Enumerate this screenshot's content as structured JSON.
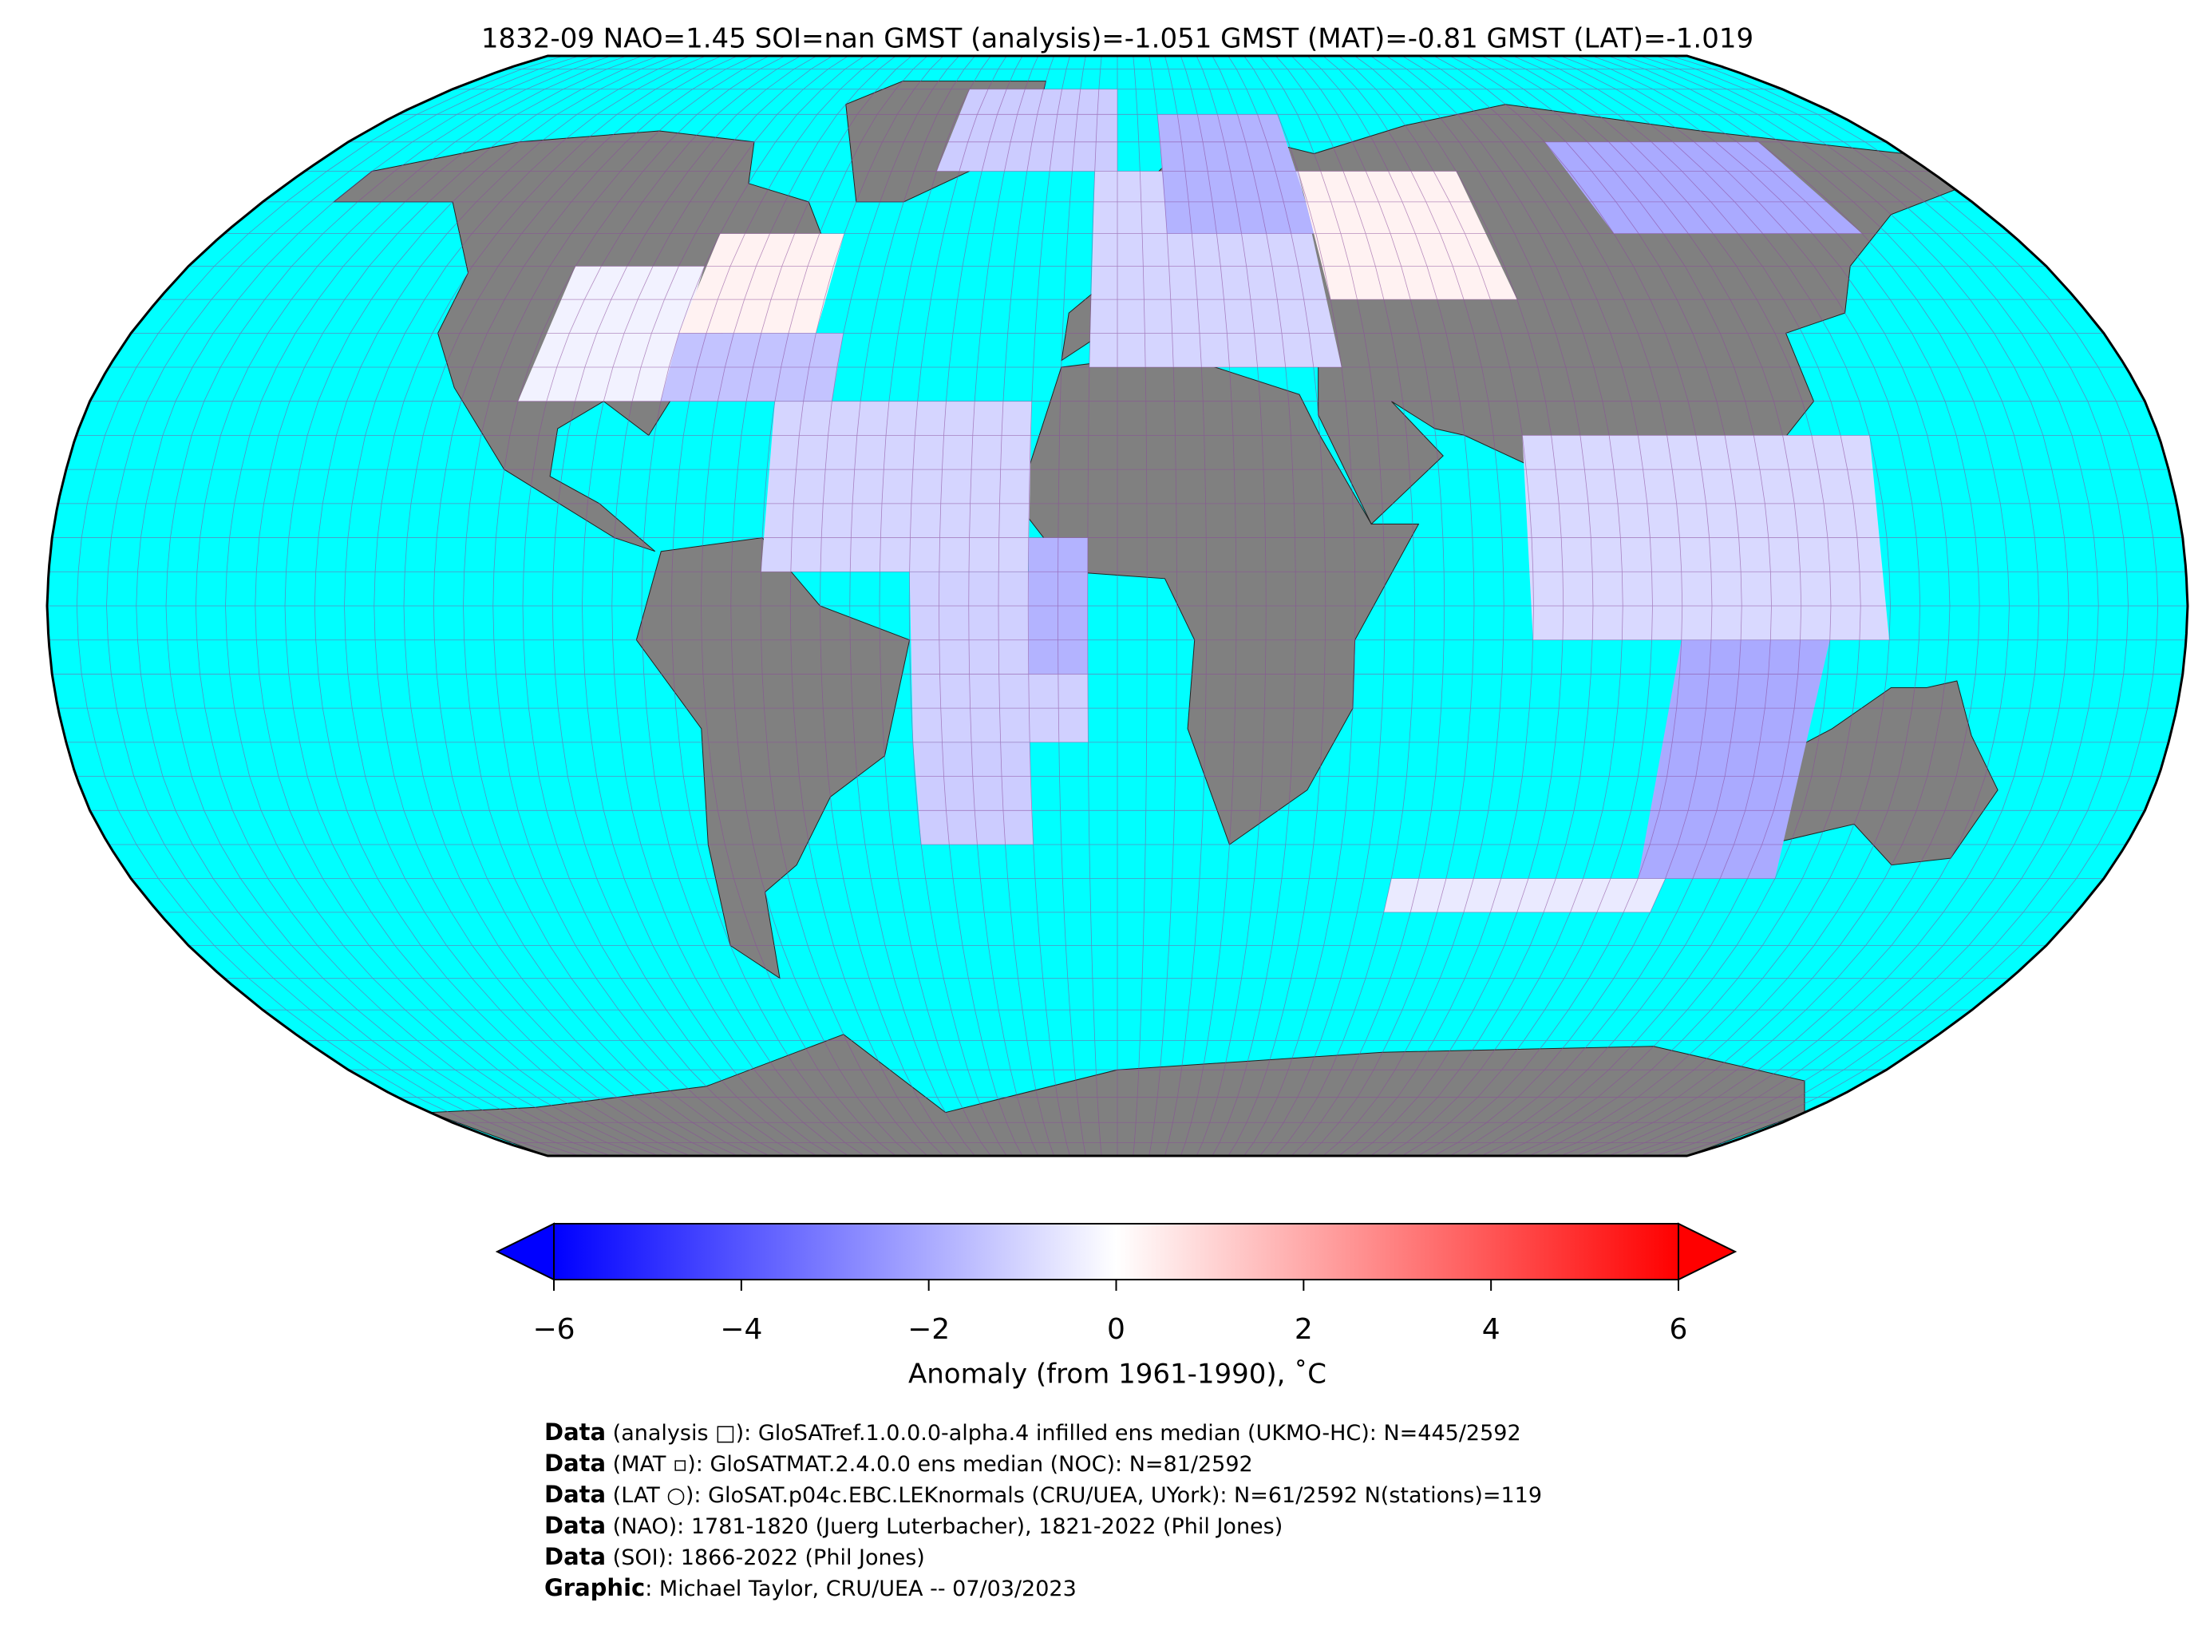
{
  "header": {
    "title": "1832-09 NAO=1.45 SOI=nan GMST (analysis)=-1.051 GMST (MAT)=-0.81 GMST (LAT)=-1.019"
  },
  "chart_data": {
    "type": "map",
    "projection": "robinson",
    "cmap": "bwr",
    "cells": [
      {
        "lon": [
          -60,
          -15
        ],
        "lat": [
          5,
          30
        ],
        "value": -1.0
      },
      {
        "lon": [
          -35,
          -5
        ],
        "lat": [
          -20,
          5
        ],
        "value": -1.1
      },
      {
        "lon": [
          -15,
          -5
        ],
        "lat": [
          -10,
          10
        ],
        "value": -1.8
      },
      {
        "lon": [
          -35,
          -15
        ],
        "lat": [
          -35,
          -20
        ],
        "value": -1.2
      },
      {
        "lon": [
          -105,
          -80
        ],
        "lat": [
          30,
          50
        ],
        "value": -0.3
      },
      {
        "lon": [
          -80,
          -55
        ],
        "lat": [
          40,
          55
        ],
        "value": 0.3
      },
      {
        "lon": [
          -80,
          -50
        ],
        "lat": [
          30,
          40
        ],
        "value": -1.4
      },
      {
        "lon": [
          -5,
          40
        ],
        "lat": [
          35,
          65
        ],
        "value": -1.0
      },
      {
        "lon": [
          10,
          40
        ],
        "lat": [
          55,
          75
        ],
        "value": -1.8
      },
      {
        "lon": [
          -40,
          0
        ],
        "lat": [
          65,
          80
        ],
        "value": -1.2
      },
      {
        "lon": [
          40,
          75
        ],
        "lat": [
          45,
          65
        ],
        "value": 0.3
      },
      {
        "lon": [
          100,
          150
        ],
        "lat": [
          55,
          70
        ],
        "value": -2.0
      },
      {
        "lon": [
          70,
          130
        ],
        "lat": [
          -5,
          25
        ],
        "value": -0.9
      },
      {
        "lon": [
          95,
          120
        ],
        "lat": [
          -40,
          -5
        ],
        "value": -2.0
      },
      {
        "lon": [
          50,
          100
        ],
        "lat": [
          -45,
          -40
        ],
        "value": -0.5
      }
    ],
    "colorbar": {
      "label": "Anomaly (from 1961-1990), ˚C",
      "vlim": [
        -6,
        6
      ],
      "ticks": [
        {
          "value": -6,
          "label": "−6"
        },
        {
          "value": -4,
          "label": "−4"
        },
        {
          "value": -2,
          "label": "−2"
        },
        0,
        2,
        4,
        6
      ]
    }
  },
  "footer": [
    {
      "label": "Data",
      "text": " (analysis □): GloSATref.1.0.0.0-alpha.4 infilled ens median (UKMO-HC): N=445/2592"
    },
    {
      "label": "Data",
      "text": " (MAT ▫): GloSATMAT.2.4.0.0 ens median (NOC): N=81/2592"
    },
    {
      "label": "Data",
      "text": " (LAT ○): GloSAT.p04c.EBC.LEKnormals (CRU/UEA, UYork): N=61/2592 N(stations)=119"
    },
    {
      "label": "Data",
      "text": " (NAO): 1781-1820 (Juerg Luterbacher), 1821-2022 (Phil Jones)"
    },
    {
      "label": "Data",
      "text": " (SOI): 1866-2022 (Phil Jones)"
    },
    {
      "label": "Graphic",
      "text": ": Michael Taylor, CRU/UEA -- 07/03/2023"
    }
  ]
}
